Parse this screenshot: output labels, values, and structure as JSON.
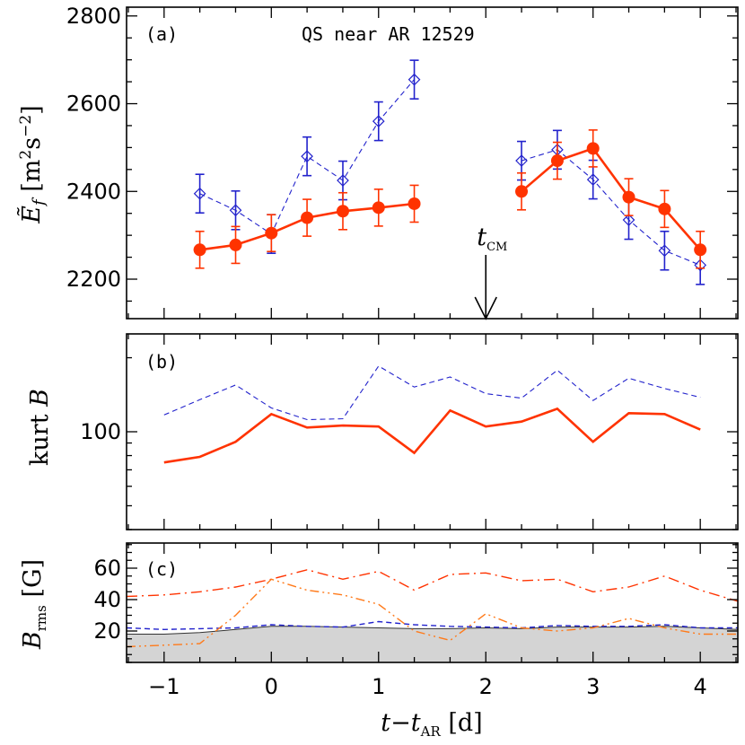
{
  "chart_data": [
    {
      "panel": "a",
      "type": "line",
      "label": "(a)",
      "title": "QS near AR 12529",
      "ylabel": "Ẽ_f [m²s⁻²]",
      "xlim": [
        -1.35,
        4.35
      ],
      "ylim": [
        2110,
        2820
      ],
      "yticks": [
        2200,
        2400,
        2600,
        2800
      ],
      "annotation": {
        "text": "t_CM",
        "x": 2.0
      },
      "series": [
        {
          "style": "solid-red-circles",
          "color": "#ff3300",
          "x": [
            -0.667,
            -0.333,
            0.0,
            0.333,
            0.667,
            1.0,
            1.333,
            2.333,
            2.667,
            3.0,
            3.333,
            3.667,
            4.0
          ],
          "y": [
            2267,
            2278,
            2305,
            2340,
            2355,
            2363,
            2372,
            2400,
            2470,
            2498,
            2387,
            2360,
            2267
          ],
          "err": [
            42,
            42,
            42,
            42,
            42,
            42,
            42,
            42,
            42,
            42,
            42,
            42,
            42
          ],
          "segments": [
            [
              0,
              6
            ],
            [
              7,
              12
            ]
          ]
        },
        {
          "style": "dashed-blue-diamonds",
          "color": "#2222cc",
          "x": [
            -0.667,
            -0.333,
            0.0,
            0.333,
            0.667,
            1.0,
            1.333,
            2.333,
            2.667,
            3.0,
            3.333,
            3.667,
            4.0
          ],
          "y": [
            2395,
            2357,
            2303,
            2480,
            2425,
            2560,
            2655,
            2470,
            2495,
            2427,
            2335,
            2265,
            2232
          ],
          "err": [
            44,
            44,
            44,
            44,
            44,
            44,
            44,
            44,
            44,
            44,
            44,
            44,
            44
          ],
          "segments": [
            [
              0,
              6
            ],
            [
              7,
              12
            ]
          ]
        }
      ]
    },
    {
      "panel": "b",
      "type": "line",
      "label": "(b)",
      "ylabel": "kurt B",
      "log_y": true,
      "xlim": [
        -1.35,
        4.35
      ],
      "ylim": [
        40,
        250
      ],
      "yticks": [
        100
      ],
      "series": [
        {
          "style": "solid-red",
          "color": "#ff3300",
          "x": [
            -1.0,
            -0.667,
            -0.333,
            0.0,
            0.333,
            0.667,
            1.0,
            1.333,
            1.667,
            2.0,
            2.333,
            2.667,
            3.0,
            3.333,
            3.667,
            4.0
          ],
          "y": [
            75,
            79,
            91,
            118,
            104,
            106,
            105,
            82,
            122,
            105,
            110,
            124,
            91,
            119,
            118,
            102
          ]
        },
        {
          "style": "dashed-blue",
          "color": "#2222cc",
          "x": [
            -1.0,
            -0.667,
            -0.333,
            0.0,
            0.333,
            0.667,
            1.0,
            1.333,
            1.667,
            2.0,
            2.333,
            2.667,
            3.0,
            3.333,
            3.667,
            4.0
          ],
          "y": [
            117,
            135,
            155,
            125,
            112,
            113,
            185,
            152,
            167,
            143,
            137,
            178,
            134,
            165,
            150,
            138
          ]
        }
      ]
    },
    {
      "panel": "c",
      "type": "line",
      "label": "(c)",
      "ylabel": "B_rms [G]",
      "xlabel": "t−t_AR [d]",
      "xlim": [
        -1.35,
        4.35
      ],
      "ylim": [
        0,
        76
      ],
      "yticks": [
        20,
        40,
        60
      ],
      "xticks": [
        -1,
        0,
        1,
        2,
        3,
        4
      ],
      "series": [
        {
          "style": "filled-gray-area",
          "color": "#d4d4d4",
          "x": [
            -1.35,
            -1.0,
            -0.667,
            -0.333,
            0.0,
            0.333,
            0.667,
            1.0,
            1.333,
            1.667,
            2.0,
            2.333,
            2.667,
            3.0,
            3.333,
            3.667,
            4.0,
            4.35
          ],
          "y": [
            18,
            18,
            19,
            21,
            23,
            23,
            22.5,
            22,
            21.5,
            21.5,
            22,
            21.5,
            22.5,
            22.5,
            22.5,
            23,
            22,
            21
          ]
        },
        {
          "style": "dashed-blue",
          "color": "#2222cc",
          "x": [
            -1.35,
            -1.0,
            -0.667,
            -0.333,
            0.0,
            0.333,
            0.667,
            1.0,
            1.333,
            1.667,
            2.0,
            2.333,
            2.667,
            3.0,
            3.333,
            3.667,
            4.0,
            4.35
          ],
          "y": [
            22,
            21,
            21.5,
            22,
            24,
            23,
            22.5,
            26,
            24,
            23,
            22.5,
            22,
            23.5,
            23,
            23,
            24,
            22,
            22
          ]
        },
        {
          "style": "dash-dot-red",
          "color": "#ff3300",
          "x": [
            -1.35,
            -1.0,
            -0.667,
            -0.333,
            0.0,
            0.333,
            0.667,
            1.0,
            1.333,
            1.667,
            2.0,
            2.333,
            2.667,
            3.0,
            3.333,
            3.667,
            4.0,
            4.35
          ],
          "y": [
            42,
            43,
            45,
            48,
            53,
            59,
            53,
            58,
            46,
            56,
            57,
            52,
            53,
            45,
            48,
            55,
            46,
            39
          ]
        },
        {
          "style": "dash-dot-dot-orange",
          "color": "#ff7a1a",
          "x": [
            -1.35,
            -1.0,
            -0.667,
            -0.333,
            0.0,
            0.333,
            0.667,
            1.0,
            1.333,
            1.667,
            2.0,
            2.333,
            2.667,
            3.0,
            3.333,
            3.667,
            4.0,
            4.35
          ],
          "y": [
            10,
            11,
            12,
            30,
            53,
            46,
            43,
            37,
            20,
            14,
            31,
            22,
            20,
            22,
            28,
            22,
            18,
            18
          ]
        }
      ]
    }
  ]
}
